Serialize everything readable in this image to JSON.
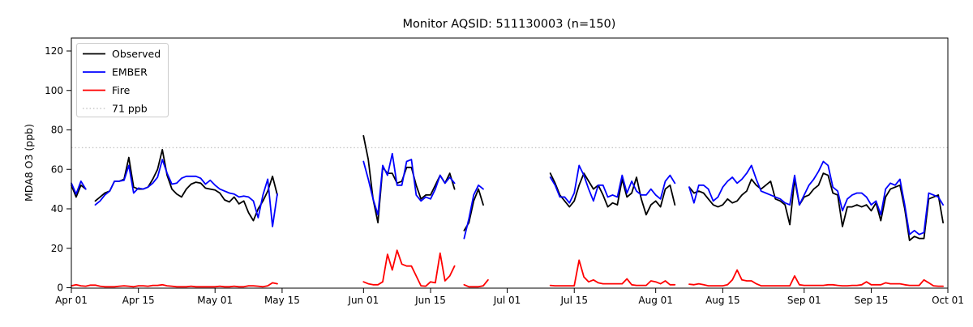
{
  "title": "Monitor AQSID: 511130003 (n=150)",
  "chart_data": {
    "type": "line",
    "title": "Monitor AQSID: 511130003 (n=150)",
    "xlabel": "",
    "ylabel": "MDA8 O3 (ppb)",
    "ylim": [
      0,
      126
    ],
    "y_ticks": [
      0,
      20,
      40,
      60,
      80,
      100,
      120
    ],
    "x_total_days": 183,
    "x_tick_days": [
      0,
      14,
      30,
      44,
      61,
      75,
      91,
      105,
      122,
      136,
      153,
      167,
      183
    ],
    "x_tick_labels": [
      "Apr 01",
      "Apr 15",
      "May 01",
      "May 15",
      "Jun 01",
      "Jun 15",
      "Jul 01",
      "Jul 15",
      "Aug 01",
      "Aug 15",
      "Sep 01",
      "Sep 15",
      "Oct 01"
    ],
    "grid": false,
    "legend_position": "upper-left",
    "threshold": {
      "value": 71,
      "label": "71 ppb",
      "color": "#c8c8c8"
    },
    "series": [
      {
        "name": "Observed",
        "color": "#000000",
        "values": [
          52,
          46,
          52,
          50,
          null,
          44,
          46,
          48,
          49,
          54,
          54,
          55,
          66,
          51,
          50,
          50,
          51,
          55,
          60,
          70,
          57,
          50,
          47.5,
          46,
          50,
          52.5,
          53.5,
          53,
          50.5,
          50,
          49.5,
          48,
          44.5,
          43.5,
          46,
          42.5,
          44,
          38,
          34,
          40,
          44,
          49,
          56.5,
          47,
          null,
          null,
          null,
          null,
          null,
          null,
          null,
          null,
          null,
          null,
          null,
          null,
          null,
          null,
          null,
          null,
          null,
          77,
          65,
          45,
          33,
          61,
          58,
          58,
          53,
          54,
          61,
          61,
          52,
          45,
          47,
          47,
          52,
          57,
          53,
          58,
          50,
          null,
          29,
          33,
          44,
          50,
          42,
          null,
          null,
          null,
          null,
          null,
          null,
          null,
          null,
          null,
          null,
          null,
          null,
          null,
          58,
          53,
          47,
          44,
          41,
          44,
          52,
          58,
          54,
          50,
          52,
          47,
          41,
          43,
          42,
          55,
          46,
          48,
          56,
          45,
          37,
          42,
          44,
          41,
          50,
          52,
          42,
          null,
          null,
          51,
          48,
          49,
          48,
          45,
          42,
          41,
          42,
          45,
          43,
          44,
          47,
          49,
          55,
          52,
          50,
          52,
          54,
          45,
          44,
          42,
          32,
          55,
          42,
          46,
          47,
          50,
          52,
          58,
          57,
          48,
          47,
          31,
          41,
          41,
          42,
          41,
          42,
          39,
          43,
          34,
          46,
          50,
          51,
          52,
          40,
          24,
          26,
          25,
          25,
          45,
          46,
          47,
          33
        ]
      },
      {
        "name": "EMBER",
        "color": "#0000ff",
        "values": [
          53,
          47.5,
          54,
          50,
          null,
          42,
          44,
          47,
          49,
          54,
          54,
          54.5,
          62,
          48,
          50.5,
          50,
          51,
          53,
          56,
          65,
          58,
          52.5,
          53,
          55.5,
          56.5,
          56.5,
          56.5,
          55.5,
          52.5,
          54.5,
          52,
          50,
          49,
          48,
          47.5,
          46,
          46.5,
          46,
          44,
          35.5,
          47,
          55,
          31,
          47.5,
          null,
          null,
          null,
          null,
          null,
          null,
          null,
          null,
          null,
          null,
          null,
          null,
          null,
          null,
          null,
          null,
          null,
          64,
          55,
          45,
          37,
          62,
          57,
          68,
          52,
          52,
          64,
          65,
          47,
          44,
          46,
          45,
          50,
          57,
          53,
          56,
          53,
          null,
          25,
          35,
          47,
          52,
          50,
          null,
          null,
          null,
          null,
          null,
          null,
          null,
          null,
          null,
          null,
          null,
          null,
          null,
          56,
          52,
          46,
          46,
          43,
          48,
          62,
          57,
          50,
          44,
          52,
          52,
          46,
          47,
          46,
          57,
          48,
          54,
          49,
          47,
          47,
          50,
          47,
          45,
          54,
          57,
          53,
          null,
          null,
          51,
          43,
          52,
          52,
          50,
          44,
          46,
          51,
          54,
          56,
          53,
          55,
          58,
          62,
          55,
          49,
          48,
          47,
          46,
          45,
          43,
          42,
          57,
          42,
          47,
          52,
          55,
          59,
          64,
          62,
          51,
          49,
          39,
          45,
          47,
          48,
          48,
          46,
          42,
          44,
          37,
          50,
          53,
          52,
          55,
          42,
          27,
          29,
          27,
          28,
          48,
          47,
          46,
          42
        ]
      },
      {
        "name": "Fire",
        "color": "#ff0000",
        "values": [
          1,
          1.5,
          1,
          0.8,
          1.3,
          1.3,
          0.8,
          0.5,
          0.5,
          0.5,
          0.8,
          1,
          0.8,
          0.5,
          1,
          1,
          0.8,
          1.2,
          1.2,
          1.5,
          1,
          0.8,
          0.5,
          0.5,
          0.5,
          0.8,
          0.5,
          0.5,
          0.5,
          0.5,
          0.5,
          0.8,
          0.5,
          0.5,
          0.8,
          0.5,
          0.5,
          1,
          1,
          0.8,
          0.5,
          1,
          2.5,
          2,
          null,
          null,
          null,
          null,
          null,
          null,
          null,
          null,
          null,
          null,
          null,
          null,
          null,
          null,
          null,
          null,
          null,
          3,
          2,
          1.5,
          1.5,
          3,
          17,
          9,
          19,
          12,
          11,
          11,
          6,
          1,
          0.8,
          3,
          2.5,
          17.5,
          3.5,
          6,
          11,
          null,
          1.5,
          0.5,
          0.5,
          0.5,
          1,
          4,
          null,
          null,
          null,
          null,
          null,
          null,
          null,
          null,
          null,
          null,
          null,
          null,
          1.2,
          1,
          1,
          1,
          1,
          1,
          14,
          5.5,
          3,
          4,
          2.5,
          2,
          2,
          2,
          2,
          2,
          4.5,
          1.5,
          1.2,
          1.2,
          1.2,
          3.5,
          3,
          2,
          3.5,
          1.5,
          1.5,
          null,
          null,
          1.8,
          1.5,
          2,
          1.5,
          1,
          1,
          1,
          1,
          1.5,
          4,
          9,
          4,
          3.5,
          3.5,
          2,
          1,
          1,
          1,
          1,
          1,
          1,
          1,
          6,
          1.5,
          1.2,
          1.2,
          1.2,
          1.2,
          1.2,
          1.5,
          1.5,
          1.2,
          1,
          1,
          1.2,
          1.2,
          1.5,
          3,
          1.5,
          1.5,
          1.5,
          2.5,
          2,
          2,
          2,
          1.5,
          1.2,
          1.2,
          1.2,
          4,
          2.5,
          1,
          0.8,
          0.8
        ]
      }
    ]
  }
}
